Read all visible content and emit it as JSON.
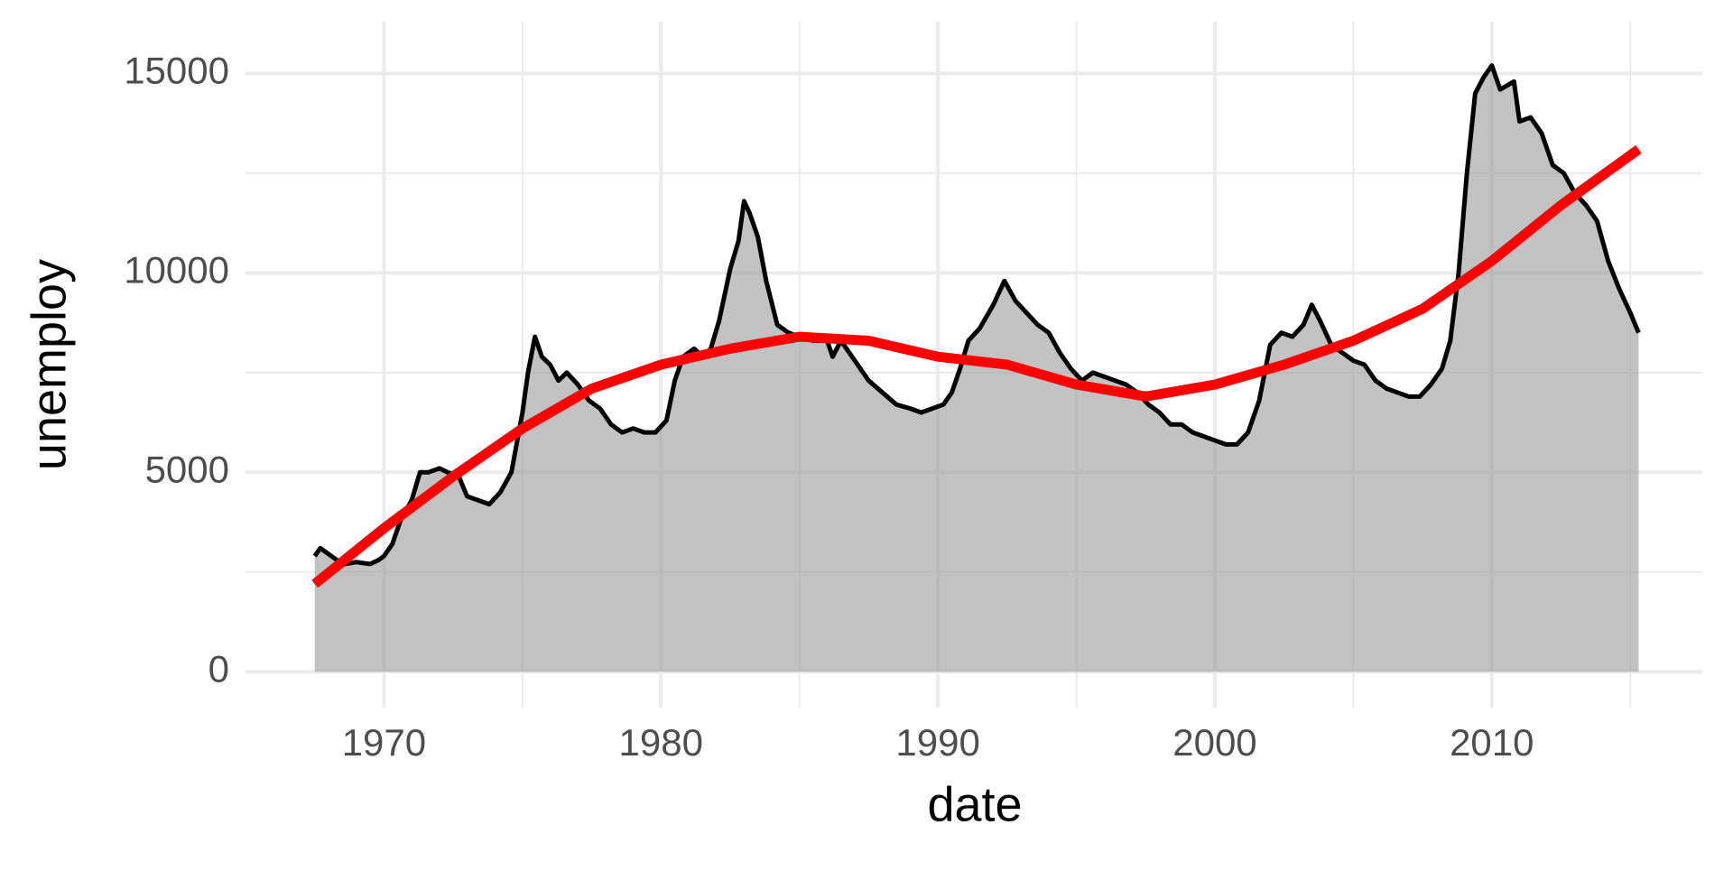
{
  "chart_data": {
    "type": "area",
    "x_label": "date",
    "y_label": "unemploy",
    "xlim": [
      1965.0,
      2017.6
    ],
    "ylim": [
      -900,
      16300
    ],
    "xticks": [
      1970,
      1980,
      1990,
      2000,
      2010
    ],
    "yticks": [
      0,
      5000,
      10000,
      15000
    ],
    "minor_xticks": [
      1975,
      1985,
      1995,
      2005,
      2015
    ],
    "minor_yticks": [
      2500,
      7500,
      12500
    ],
    "grid": true,
    "series": [
      {
        "type": "area",
        "color": "#000000",
        "fill": "#999999",
        "x": [
          1967.5,
          1967.7,
          1968.0,
          1968.3,
          1968.6,
          1969.0,
          1969.5,
          1969.8,
          1970.0,
          1970.3,
          1970.6,
          1971.0,
          1971.3,
          1971.6,
          1972.0,
          1972.3,
          1972.7,
          1973.0,
          1973.4,
          1973.8,
          1974.2,
          1974.6,
          1975.0,
          1975.2,
          1975.45,
          1975.7,
          1976.0,
          1976.3,
          1976.6,
          1977.0,
          1977.4,
          1977.8,
          1978.2,
          1978.6,
          1979.0,
          1979.4,
          1979.8,
          1980.2,
          1980.5,
          1980.8,
          1981.2,
          1981.5,
          1981.8,
          1982.1,
          1982.5,
          1982.8,
          1983.0,
          1983.2,
          1983.5,
          1983.8,
          1984.2,
          1984.6,
          1985.0,
          1985.5,
          1986.0,
          1986.2,
          1986.5,
          1987.0,
          1987.5,
          1988.0,
          1988.5,
          1989.0,
          1989.4,
          1989.8,
          1990.2,
          1990.5,
          1990.8,
          1991.1,
          1991.5,
          1992.0,
          1992.4,
          1992.8,
          1993.2,
          1993.6,
          1994.0,
          1994.4,
          1994.8,
          1995.2,
          1995.6,
          1996.0,
          1996.4,
          1996.8,
          1997.2,
          1997.6,
          1998.0,
          1998.4,
          1998.8,
          1999.2,
          1999.6,
          2000.0,
          2000.4,
          2000.8,
          2001.2,
          2001.6,
          2002.0,
          2002.4,
          2002.8,
          2003.2,
          2003.5,
          2003.8,
          2004.2,
          2004.6,
          2005.0,
          2005.4,
          2005.8,
          2006.2,
          2006.6,
          2007.0,
          2007.4,
          2007.8,
          2008.2,
          2008.5,
          2008.8,
          2009.1,
          2009.4,
          2009.7,
          2010.0,
          2010.3,
          2010.8,
          2011.0,
          2011.4,
          2011.8,
          2012.2,
          2012.6,
          2013.0,
          2013.4,
          2013.8,
          2014.2,
          2014.6,
          2015.0,
          2015.3
        ],
        "values": [
          2900,
          3100,
          2950,
          2800,
          2700,
          2750,
          2700,
          2800,
          2900,
          3200,
          3800,
          4300,
          5000,
          5000,
          5100,
          5000,
          4900,
          4400,
          4300,
          4200,
          4500,
          5000,
          6500,
          7500,
          8400,
          7900,
          7700,
          7300,
          7500,
          7200,
          6800,
          6600,
          6200,
          6000,
          6100,
          6000,
          6000,
          6300,
          7300,
          7900,
          8100,
          7900,
          8100,
          8800,
          10100,
          10800,
          11800,
          11500,
          10900,
          9800,
          8700,
          8500,
          8400,
          8300,
          8300,
          7900,
          8300,
          7800,
          7300,
          7000,
          6700,
          6600,
          6500,
          6600,
          6700,
          7000,
          7600,
          8300,
          8600,
          9200,
          9800,
          9300,
          9000,
          8700,
          8500,
          8000,
          7600,
          7300,
          7500,
          7400,
          7300,
          7200,
          7000,
          6700,
          6500,
          6200,
          6200,
          6000,
          5900,
          5800,
          5700,
          5700,
          6000,
          6800,
          8200,
          8500,
          8400,
          8700,
          9200,
          8800,
          8200,
          8000,
          7800,
          7700,
          7300,
          7100,
          7000,
          6900,
          6900,
          7200,
          7600,
          8300,
          10000,
          12500,
          14500,
          14900,
          15200,
          14600,
          14800,
          13800,
          13900,
          13500,
          12700,
          12500,
          12000,
          11700,
          11300,
          10300,
          9600,
          9000,
          8500
        ]
      },
      {
        "type": "line",
        "color": "#ff0000",
        "x": [
          1967.5,
          1970,
          1972.5,
          1975,
          1977.5,
          1980,
          1982.5,
          1985,
          1987.5,
          1990,
          1992.5,
          1995,
          1997.5,
          2000,
          2002.5,
          2005,
          2007.5,
          2010,
          2012.5,
          2015.3
        ],
        "values": [
          2200,
          3600,
          4900,
          6100,
          7100,
          7700,
          8100,
          8400,
          8300,
          7900,
          7700,
          7200,
          6900,
          7200,
          7700,
          8300,
          9100,
          10300,
          11700,
          13100
        ]
      }
    ]
  }
}
